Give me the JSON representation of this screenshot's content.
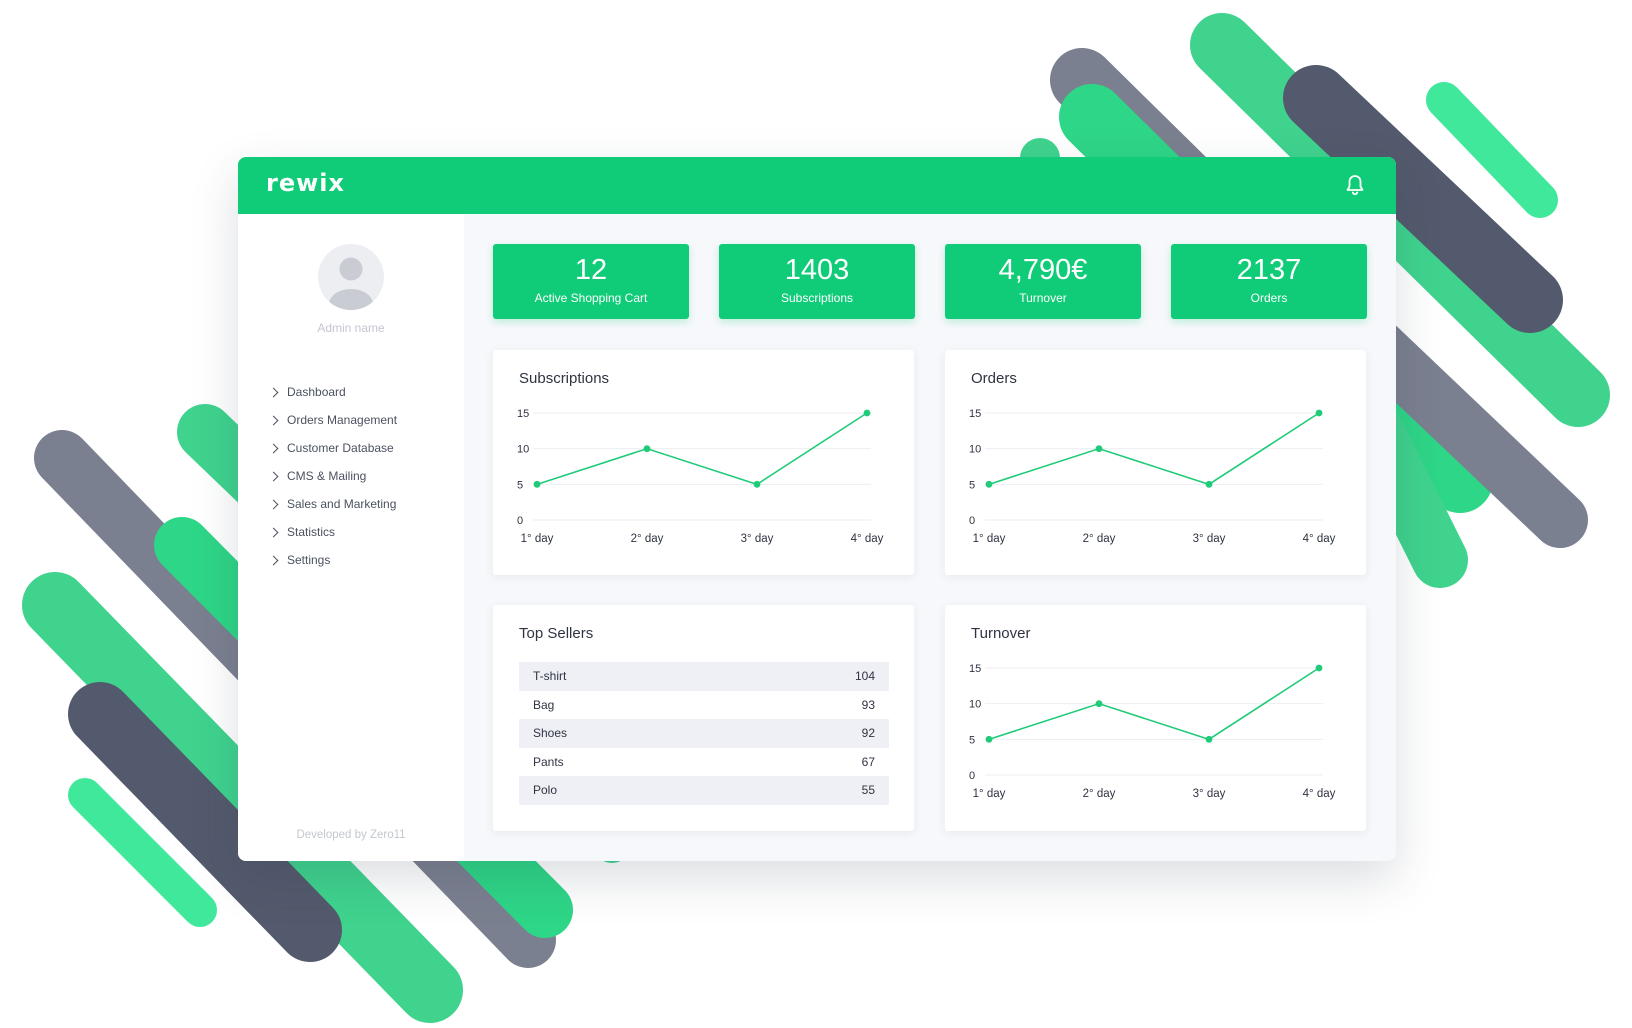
{
  "header": {
    "logo": "rewix"
  },
  "sidebar": {
    "admin_name": "Admin name",
    "menu": [
      "Dashboard",
      "Orders Management",
      "Customer Database",
      "CMS & Mailing",
      "Sales and Marketing",
      "Statistics",
      "Settings"
    ],
    "credit": "Developed by Zero11"
  },
  "kpis": [
    {
      "value": "12",
      "label": "Active Shopping Cart"
    },
    {
      "value": "1403",
      "label": "Subscriptions"
    },
    {
      "value": "4,790€",
      "label": "Turnover"
    },
    {
      "value": "2137",
      "label": "Orders"
    }
  ],
  "cards": {
    "subscriptions_title": "Subscriptions",
    "orders_title": "Orders",
    "top_sellers_title": "Top Sellers",
    "turnover_title": "Turnover"
  },
  "top_sellers": [
    {
      "name": "T-shirt",
      "value": "104"
    },
    {
      "name": "Bag",
      "value": "93"
    },
    {
      "name": "Shoes",
      "value": "92"
    },
    {
      "name": "Pants",
      "value": "67"
    },
    {
      "name": "Polo",
      "value": "55"
    }
  ],
  "colors": {
    "accent": "#10cc78",
    "accent_line": "#1fcb78",
    "dark_stripe": "#50586a"
  },
  "icons": {
    "bell": "bell-icon",
    "menu_chevron": "chevron-right-icon",
    "avatar": "user-avatar-icon"
  },
  "chart_data": [
    {
      "type": "line",
      "title": "Subscriptions",
      "categories": [
        "1° day",
        "2° day",
        "3° day",
        "4° day"
      ],
      "values": [
        5,
        10,
        5,
        15
      ],
      "yticks": [
        0,
        5,
        10,
        15
      ],
      "ylim": [
        0,
        15
      ],
      "grid": true
    },
    {
      "type": "line",
      "title": "Orders",
      "categories": [
        "1° day",
        "2° day",
        "3° day",
        "4° day"
      ],
      "values": [
        5,
        10,
        5,
        15
      ],
      "yticks": [
        0,
        5,
        10,
        15
      ],
      "ylim": [
        0,
        15
      ],
      "grid": true
    },
    {
      "type": "line",
      "title": "Turnover",
      "categories": [
        "1° day",
        "2° day",
        "3° day",
        "4° day"
      ],
      "values": [
        5,
        10,
        5,
        15
      ],
      "yticks": [
        0,
        5,
        10,
        15
      ],
      "ylim": [
        0,
        15
      ],
      "grid": true
    }
  ]
}
